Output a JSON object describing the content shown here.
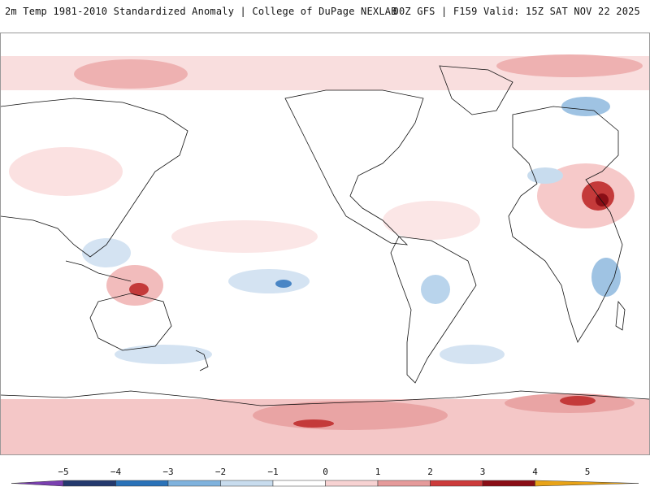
{
  "header": {
    "title_left": "2m Temp 1981-2010 Standardized Anomaly | College of DuPage NEXLAB",
    "title_right": "00Z GFS | F159 Valid: 15Z SAT NOV 22 2025"
  },
  "colorbar": {
    "ticks": [
      "−5",
      "−4",
      "−3",
      "−2",
      "−1",
      "0",
      "1",
      "2",
      "3",
      "4",
      "5"
    ],
    "colors": {
      "lt_neg5": "#7a3fb0",
      "neg5_neg4": "#24396e",
      "neg4_neg3": "#2a72b8",
      "neg3_neg2": "#7fb2dd",
      "neg2_neg1": "#c8dcee",
      "neg1_1": "#ffffff",
      "pos1_2": "#f7d2d2",
      "pos2_3": "#e59a9a",
      "pos3_4": "#cc3b3b",
      "pos4_5": "#8a0e16",
      "gt_pos5": "#e8a317"
    }
  }
}
